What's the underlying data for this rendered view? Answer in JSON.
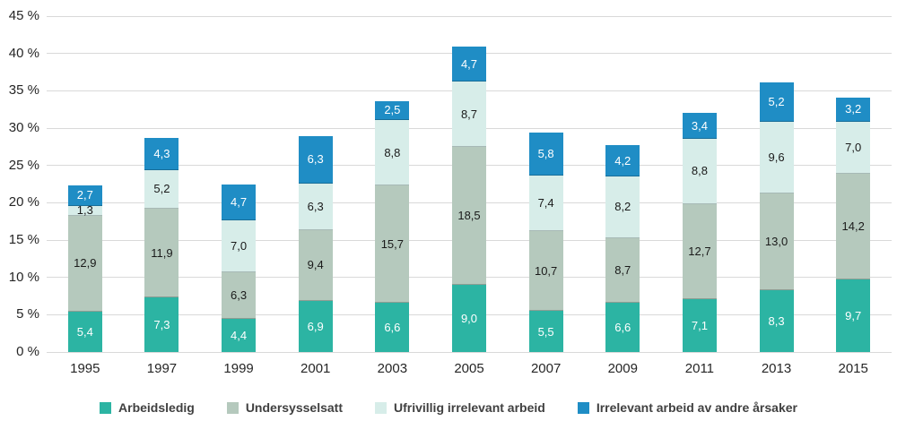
{
  "chart_data": {
    "type": "bar",
    "stacked": true,
    "title": "",
    "xlabel": "",
    "ylabel": "",
    "categories": [
      "1995",
      "1997",
      "1999",
      "2001",
      "2003",
      "2005",
      "2007",
      "2009",
      "2011",
      "2013",
      "2015"
    ],
    "series": [
      {
        "name": "Arbeidsledig",
        "color": "#2CB4A3",
        "label_color": "#ffffff",
        "values": [
          5.4,
          7.3,
          4.4,
          6.9,
          6.6,
          9.0,
          5.5,
          6.6,
          7.1,
          8.3,
          9.7
        ]
      },
      {
        "name": "Undersysselsatt",
        "color": "#B5C9BD",
        "label_color": "#1a1a1a",
        "values": [
          12.9,
          11.9,
          6.3,
          9.4,
          15.7,
          18.5,
          10.7,
          8.7,
          12.7,
          13.0,
          14.2
        ]
      },
      {
        "name": "Ufrivillig irrelevant arbeid",
        "color": "#D7EDE9",
        "label_color": "#1a1a1a",
        "values": [
          1.3,
          5.2,
          7.0,
          6.3,
          8.8,
          8.7,
          7.4,
          8.2,
          8.8,
          9.6,
          7.0
        ]
      },
      {
        "name": "Irrelevant arbeid av andre årsaker",
        "color": "#1F8DC5",
        "label_color": "#ffffff",
        "values": [
          2.7,
          4.3,
          4.7,
          6.3,
          2.5,
          4.7,
          5.8,
          4.2,
          3.4,
          5.2,
          3.2
        ]
      }
    ],
    "y_axis": {
      "min": 0,
      "max": 45,
      "step": 5,
      "suffix": " %"
    },
    "grid": true,
    "gridline_color": "#d9d9d9",
    "legend_position": "bottom",
    "decimal_separator": ","
  }
}
